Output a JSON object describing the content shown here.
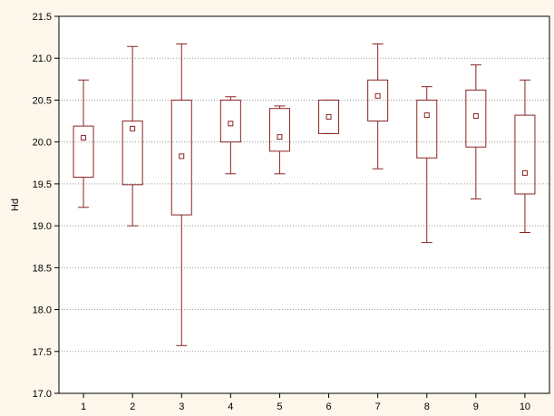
{
  "chart_data": {
    "type": "box",
    "categories": [
      "1",
      "2",
      "3",
      "4",
      "5",
      "6",
      "7",
      "8",
      "9",
      "10"
    ],
    "ylabel": "Hd",
    "xlabel": "",
    "ylim": [
      17.0,
      21.5
    ],
    "yticks": [
      "17.0",
      "17.5",
      "18.0",
      "18.5",
      "19.0",
      "19.5",
      "20.0",
      "20.5",
      "21.0",
      "21.5"
    ],
    "grid": "horizontal dotted",
    "color": "#8b2323",
    "boxes": [
      {
        "category": "1",
        "min": 19.22,
        "q1": 19.58,
        "center": 20.05,
        "q3": 20.19,
        "max": 20.74
      },
      {
        "category": "2",
        "min": 19.0,
        "q1": 19.49,
        "center": 20.16,
        "q3": 20.25,
        "max": 21.14
      },
      {
        "category": "3",
        "min": 17.57,
        "q1": 19.13,
        "center": 19.83,
        "q3": 20.5,
        "max": 21.17
      },
      {
        "category": "4",
        "min": 19.62,
        "q1": 20.0,
        "center": 20.22,
        "q3": 20.5,
        "max": 20.54
      },
      {
        "category": "5",
        "min": 19.62,
        "q1": 19.89,
        "center": 20.06,
        "q3": 20.4,
        "max": 20.43
      },
      {
        "category": "6",
        "min": 20.1,
        "q1": 20.1,
        "center": 20.3,
        "q3": 20.5,
        "max": 20.5
      },
      {
        "category": "7",
        "min": 19.68,
        "q1": 20.25,
        "center": 20.55,
        "q3": 20.74,
        "max": 21.17
      },
      {
        "category": "8",
        "min": 18.8,
        "q1": 19.81,
        "center": 20.32,
        "q3": 20.5,
        "max": 20.66
      },
      {
        "category": "9",
        "min": 19.32,
        "q1": 19.94,
        "center": 20.31,
        "q3": 20.62,
        "max": 20.92
      },
      {
        "category": "10",
        "min": 18.92,
        "q1": 19.38,
        "center": 19.63,
        "q3": 20.32,
        "max": 20.74
      }
    ]
  }
}
